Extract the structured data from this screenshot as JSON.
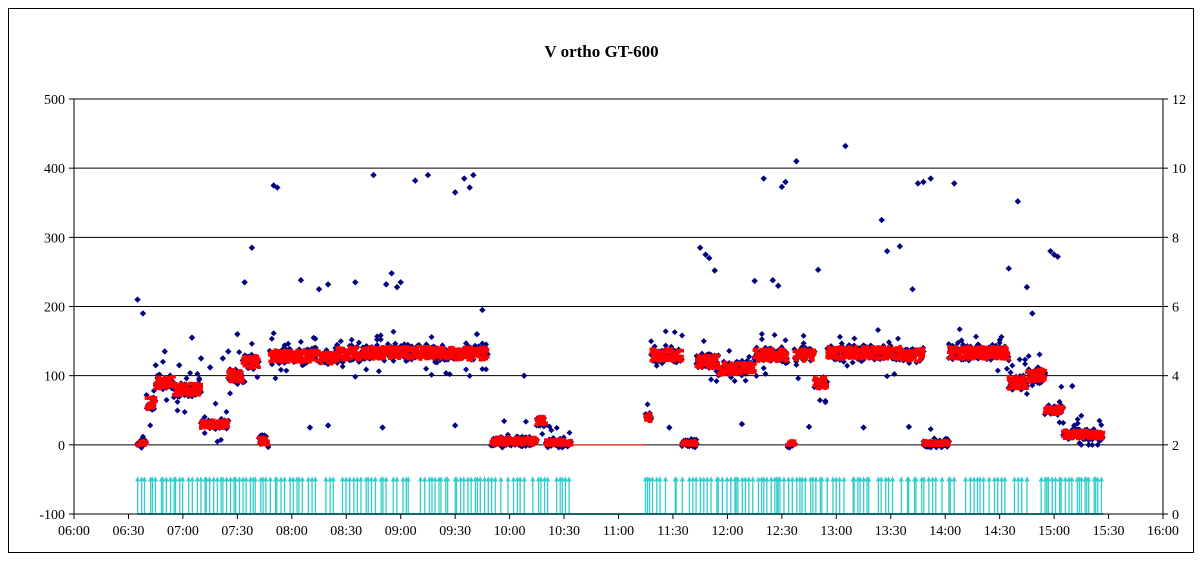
{
  "chart_data": {
    "type": "scatter",
    "title": "V ortho GT-600",
    "xlabel": "",
    "ylabel": "",
    "x_tick_labels": [
      "06:00",
      "06:30",
      "07:00",
      "07:30",
      "08:00",
      "08:30",
      "09:00",
      "09:30",
      "10:00",
      "10:30",
      "11:00",
      "11:30",
      "12:00",
      "12:30",
      "13:00",
      "13:30",
      "14:00",
      "14:30",
      "15:00",
      "15:30",
      "16:00"
    ],
    "xlim": [
      "06:00",
      "16:00"
    ],
    "ylim": [
      -100,
      500
    ],
    "y_ticks": [
      -100,
      0,
      100,
      200,
      300,
      400,
      500
    ],
    "y2lim": [
      0,
      12
    ],
    "y2_ticks": [
      0,
      2,
      4,
      6,
      8,
      10,
      12
    ],
    "grid": "horizontal",
    "legend": "none",
    "active_segments": [
      {
        "start": "06:35",
        "end": "06:40",
        "level": 0
      },
      {
        "start": "06:40",
        "end": "06:45",
        "level": 60
      },
      {
        "start": "06:45",
        "end": "06:55",
        "level": 90
      },
      {
        "start": "06:55",
        "end": "07:10",
        "level": 80
      },
      {
        "start": "07:10",
        "end": "07:25",
        "level": 30
      },
      {
        "start": "07:25",
        "end": "07:33",
        "level": 100
      },
      {
        "start": "07:33",
        "end": "07:42",
        "level": 120
      },
      {
        "start": "07:42",
        "end": "07:47",
        "level": 5
      },
      {
        "start": "07:48",
        "end": "08:15",
        "level": 128
      },
      {
        "start": "08:15",
        "end": "08:25",
        "level": 125
      },
      {
        "start": "08:25",
        "end": "08:40",
        "level": 132
      },
      {
        "start": "08:40",
        "end": "09:25",
        "level": 133
      },
      {
        "start": "09:25",
        "end": "09:48",
        "level": 132
      },
      {
        "start": "09:50",
        "end": "10:00",
        "level": 5
      },
      {
        "start": "10:00",
        "end": "10:15",
        "level": 5
      },
      {
        "start": "10:15",
        "end": "10:20",
        "level": 35
      },
      {
        "start": "10:20",
        "end": "10:34",
        "level": 2
      },
      {
        "start": "11:15",
        "end": "11:18",
        "level": 40
      },
      {
        "start": "11:18",
        "end": "11:35",
        "level": 130
      },
      {
        "start": "11:35",
        "end": "11:43",
        "level": 0
      },
      {
        "start": "11:43",
        "end": "11:55",
        "level": 120
      },
      {
        "start": "11:55",
        "end": "12:15",
        "level": 110
      },
      {
        "start": "12:15",
        "end": "12:33",
        "level": 130
      },
      {
        "start": "12:33",
        "end": "12:37",
        "level": 0
      },
      {
        "start": "12:37",
        "end": "12:48",
        "level": 130
      },
      {
        "start": "12:48",
        "end": "12:55",
        "level": 90
      },
      {
        "start": "12:55",
        "end": "13:35",
        "level": 133
      },
      {
        "start": "13:35",
        "end": "13:48",
        "level": 130
      },
      {
        "start": "13:48",
        "end": "14:02",
        "level": 0
      },
      {
        "start": "14:02",
        "end": "14:35",
        "level": 133
      },
      {
        "start": "14:35",
        "end": "14:45",
        "level": 90
      },
      {
        "start": "14:45",
        "end": "14:55",
        "level": 100
      },
      {
        "start": "14:55",
        "end": "15:05",
        "level": 50
      },
      {
        "start": "15:05",
        "end": "15:27",
        "level": 15
      }
    ],
    "scatter_points": [
      {
        "x": "06:35",
        "y": 210
      },
      {
        "x": "06:38",
        "y": 190
      },
      {
        "x": "06:45",
        "y": 115
      },
      {
        "x": "06:50",
        "y": 135
      },
      {
        "x": "06:58",
        "y": 115
      },
      {
        "x": "07:05",
        "y": 155
      },
      {
        "x": "07:10",
        "y": 125
      },
      {
        "x": "07:15",
        "y": 112
      },
      {
        "x": "07:22",
        "y": 125
      },
      {
        "x": "07:25",
        "y": 135
      },
      {
        "x": "07:30",
        "y": 160
      },
      {
        "x": "07:34",
        "y": 235
      },
      {
        "x": "07:38",
        "y": 285
      },
      {
        "x": "07:50",
        "y": 375
      },
      {
        "x": "07:52",
        "y": 372
      },
      {
        "x": "08:05",
        "y": 238
      },
      {
        "x": "08:15",
        "y": 225
      },
      {
        "x": "08:20",
        "y": 232
      },
      {
        "x": "08:35",
        "y": 235
      },
      {
        "x": "08:45",
        "y": 390
      },
      {
        "x": "08:52",
        "y": 232
      },
      {
        "x": "08:55",
        "y": 248
      },
      {
        "x": "08:58",
        "y": 228
      },
      {
        "x": "09:00",
        "y": 235
      },
      {
        "x": "09:08",
        "y": 382
      },
      {
        "x": "09:15",
        "y": 390
      },
      {
        "x": "09:30",
        "y": 365
      },
      {
        "x": "09:35",
        "y": 385
      },
      {
        "x": "09:38",
        "y": 372
      },
      {
        "x": "09:40",
        "y": 390
      },
      {
        "x": "09:45",
        "y": 195
      },
      {
        "x": "09:42",
        "y": 160
      },
      {
        "x": "10:08",
        "y": 100
      },
      {
        "x": "11:45",
        "y": 285
      },
      {
        "x": "11:48",
        "y": 275
      },
      {
        "x": "11:50",
        "y": 270
      },
      {
        "x": "11:53",
        "y": 252
      },
      {
        "x": "12:15",
        "y": 237
      },
      {
        "x": "12:20",
        "y": 385
      },
      {
        "x": "12:25",
        "y": 238
      },
      {
        "x": "12:28",
        "y": 230
      },
      {
        "x": "12:30",
        "y": 373
      },
      {
        "x": "12:32",
        "y": 380
      },
      {
        "x": "12:38",
        "y": 410
      },
      {
        "x": "12:50",
        "y": 253
      },
      {
        "x": "13:05",
        "y": 432
      },
      {
        "x": "13:25",
        "y": 325
      },
      {
        "x": "13:28",
        "y": 280
      },
      {
        "x": "13:35",
        "y": 287
      },
      {
        "x": "13:42",
        "y": 225
      },
      {
        "x": "13:45",
        "y": 378
      },
      {
        "x": "13:48",
        "y": 380
      },
      {
        "x": "13:52",
        "y": 385
      },
      {
        "x": "14:05",
        "y": 378
      },
      {
        "x": "14:35",
        "y": 255
      },
      {
        "x": "14:40",
        "y": 352
      },
      {
        "x": "14:45",
        "y": 228
      },
      {
        "x": "14:48",
        "y": 190
      },
      {
        "x": "14:58",
        "y": 280
      },
      {
        "x": "15:00",
        "y": 275
      },
      {
        "x": "15:02",
        "y": 272
      },
      {
        "x": "15:10",
        "y": 85
      },
      {
        "x": "08:10",
        "y": 25
      },
      {
        "x": "08:20",
        "y": 28
      },
      {
        "x": "08:50",
        "y": 25
      },
      {
        "x": "09:30",
        "y": 28
      },
      {
        "x": "11:28",
        "y": 25
      },
      {
        "x": "12:08",
        "y": 30
      },
      {
        "x": "12:45",
        "y": 26
      },
      {
        "x": "13:15",
        "y": 25
      },
      {
        "x": "13:40",
        "y": 26
      }
    ],
    "pulse_segments": [
      {
        "start": "06:35",
        "end": "10:34"
      },
      {
        "start": "11:15",
        "end": "15:27"
      }
    ],
    "series": [
      {
        "color": "#000080",
        "marker": "diamond"
      },
      {
        "color": "#ff0000",
        "marker": "square"
      },
      {
        "color": "#33cccc",
        "marker": "triangle",
        "axis": "right"
      }
    ]
  }
}
